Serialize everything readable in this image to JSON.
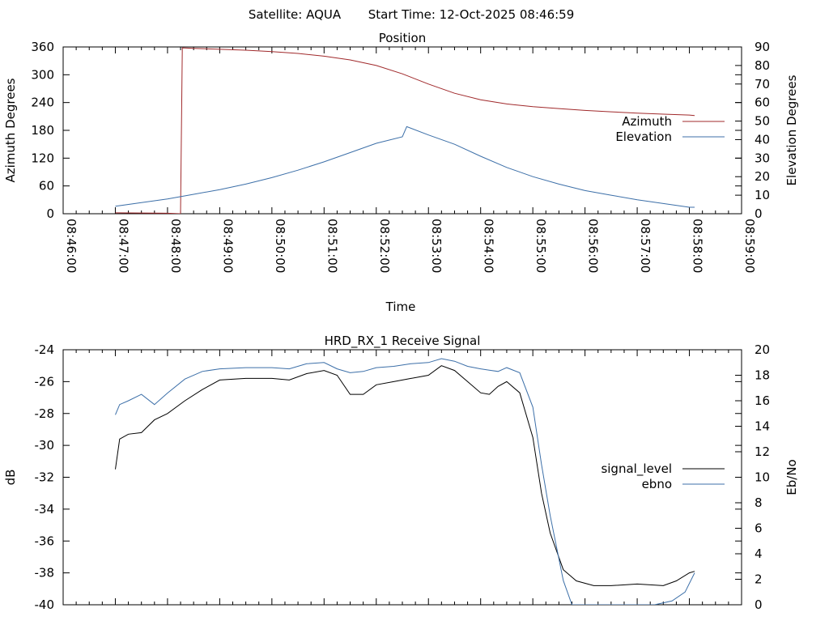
{
  "header": {
    "satellite": "Satellite: AQUA",
    "start_time": "Start Time: 12-Oct-2025 08:46:59"
  },
  "chart_data": [
    {
      "type": "line",
      "title": "Position",
      "xlabel": "Time",
      "ylabel": "Azimuth Degrees",
      "y2label": "Elevation Degrees",
      "xlim": [
        "08:46:00",
        "08:59:00"
      ],
      "xticks": [
        "08:46:00",
        "08:47:00",
        "08:48:00",
        "08:49:00",
        "08:50:00",
        "08:51:00",
        "08:52:00",
        "08:53:00",
        "08:54:00",
        "08:55:00",
        "08:56:00",
        "08:57:00",
        "08:58:00",
        "08:59:00"
      ],
      "ylim": [
        0,
        360
      ],
      "yticks": [
        0,
        60,
        120,
        180,
        240,
        300,
        360
      ],
      "y2lim": [
        0,
        90
      ],
      "y2ticks": [
        0,
        10,
        20,
        30,
        40,
        50,
        60,
        70,
        80,
        90
      ],
      "legend_position": "right",
      "grid": false,
      "series": [
        {
          "name": "Azimuth",
          "axis": "left",
          "color": "#a0292b",
          "x": [
            "08:47:00",
            "08:48:00",
            "08:48:15",
            "08:48:16",
            "08:48:17",
            "08:48:30",
            "08:49:00",
            "08:49:30",
            "08:50:00",
            "08:50:30",
            "08:51:00",
            "08:51:30",
            "08:52:00",
            "08:52:30",
            "08:53:00",
            "08:53:30",
            "08:54:00",
            "08:54:30",
            "08:55:00",
            "08:55:30",
            "08:56:00",
            "08:56:30",
            "08:57:00",
            "08:57:30",
            "08:58:00",
            "08:58:06"
          ],
          "values": [
            2,
            1,
            0,
            180,
            358,
            357,
            355,
            353,
            350,
            346,
            340,
            332,
            320,
            302,
            280,
            260,
            246,
            237,
            231,
            227,
            223,
            220,
            217,
            215,
            213,
            212
          ]
        },
        {
          "name": "Elevation",
          "axis": "right",
          "color": "#3c6fa8",
          "x": [
            "08:47:00",
            "08:47:30",
            "08:48:00",
            "08:48:30",
            "08:49:00",
            "08:49:30",
            "08:50:00",
            "08:50:30",
            "08:51:00",
            "08:51:30",
            "08:52:00",
            "08:52:30",
            "08:52:35",
            "08:53:00",
            "08:53:30",
            "08:54:00",
            "08:54:30",
            "08:55:00",
            "08:55:30",
            "08:56:00",
            "08:56:30",
            "08:57:00",
            "08:57:30",
            "08:58:00",
            "08:58:06"
          ],
          "values": [
            4,
            6,
            8,
            10.5,
            13,
            16,
            19.5,
            23.5,
            28,
            33,
            38,
            41.5,
            47,
            42.5,
            37.5,
            31,
            25,
            20,
            16,
            12.5,
            10,
            7.5,
            5.5,
            3.5,
            3.5
          ]
        }
      ]
    },
    {
      "type": "line",
      "title": "HRD_RX_1 Receive Signal",
      "xlabel": "",
      "ylabel": "dB",
      "y2label": "Eb/No",
      "xlim": [
        "08:46:00",
        "08:59:00"
      ],
      "ylim": [
        -40,
        -24
      ],
      "yticks": [
        -40,
        -38,
        -36,
        -34,
        -32,
        -30,
        -28,
        -26,
        -24
      ],
      "y2lim": [
        0,
        20
      ],
      "y2ticks": [
        0,
        2,
        4,
        6,
        8,
        10,
        12,
        14,
        16,
        18,
        20
      ],
      "legend_position": "right",
      "grid": false,
      "series": [
        {
          "name": "signal_level",
          "axis": "left",
          "color": "#000000",
          "x": [
            "08:47:00",
            "08:47:05",
            "08:47:15",
            "08:47:30",
            "08:47:45",
            "08:48:00",
            "08:48:20",
            "08:48:40",
            "08:49:00",
            "08:49:30",
            "08:50:00",
            "08:50:20",
            "08:50:40",
            "08:51:00",
            "08:51:15",
            "08:51:30",
            "08:51:45",
            "08:52:00",
            "08:52:20",
            "08:52:40",
            "08:53:00",
            "08:53:15",
            "08:53:30",
            "08:53:45",
            "08:54:00",
            "08:54:10",
            "08:54:20",
            "08:54:30",
            "08:54:45",
            "08:55:00",
            "08:55:10",
            "08:55:20",
            "08:55:35",
            "08:55:50",
            "08:56:10",
            "08:56:30",
            "08:57:00",
            "08:57:30",
            "08:57:45",
            "08:58:00",
            "08:58:06"
          ],
          "values": [
            -31.5,
            -29.6,
            -29.3,
            -29.2,
            -28.4,
            -28.0,
            -27.2,
            -26.5,
            -25.9,
            -25.8,
            -25.8,
            -25.9,
            -25.5,
            -25.3,
            -25.6,
            -26.8,
            -26.8,
            -26.2,
            -26.0,
            -25.8,
            -25.6,
            -25.0,
            -25.3,
            -26.0,
            -26.7,
            -26.8,
            -26.3,
            -26.0,
            -26.7,
            -29.5,
            -33.0,
            -35.5,
            -37.8,
            -38.5,
            -38.8,
            -38.8,
            -38.7,
            -38.8,
            -38.5,
            -38.0,
            -37.9
          ]
        },
        {
          "name": "ebno",
          "axis": "right",
          "color": "#3c6fa8",
          "x": [
            "08:47:00",
            "08:47:05",
            "08:47:15",
            "08:47:30",
            "08:47:45",
            "08:48:00",
            "08:48:20",
            "08:48:40",
            "08:49:00",
            "08:49:30",
            "08:50:00",
            "08:50:20",
            "08:50:40",
            "08:51:00",
            "08:51:15",
            "08:51:30",
            "08:51:45",
            "08:52:00",
            "08:52:20",
            "08:52:40",
            "08:53:00",
            "08:53:15",
            "08:53:30",
            "08:53:45",
            "08:54:00",
            "08:54:10",
            "08:54:20",
            "08:54:30",
            "08:54:45",
            "08:55:00",
            "08:55:10",
            "08:55:20",
            "08:55:35",
            "08:55:45",
            "08:57:20",
            "08:57:40",
            "08:57:55",
            "08:58:06"
          ],
          "values": [
            14.9,
            15.7,
            16.0,
            16.5,
            15.7,
            16.6,
            17.7,
            18.3,
            18.5,
            18.6,
            18.6,
            18.5,
            18.9,
            19.0,
            18.5,
            18.2,
            18.3,
            18.6,
            18.7,
            18.9,
            19.0,
            19.3,
            19.1,
            18.7,
            18.5,
            18.4,
            18.3,
            18.6,
            18.2,
            15.5,
            11.0,
            7.0,
            1.9,
            0.0,
            0.0,
            0.3,
            1.0,
            2.5
          ]
        }
      ]
    }
  ]
}
